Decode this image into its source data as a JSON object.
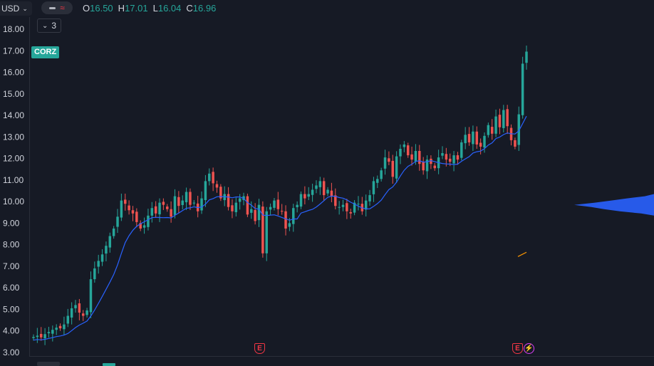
{
  "header": {
    "currency": "USD",
    "ohlc": {
      "open_key": "O",
      "open": "16.50",
      "high_key": "H",
      "high": "17.01",
      "low_key": "L",
      "low": "16.04",
      "close_key": "C",
      "close": "16.96"
    },
    "indicator_count": "3",
    "symbol": "CORZ"
  },
  "markers": {
    "earnings_label": "E",
    "dividend_icon": "lightning-icon"
  },
  "colors": {
    "background": "#161a25",
    "up": "#26a69a",
    "down": "#ef5350",
    "ma": "#2962ff",
    "volume_profile": "#2962ff",
    "earnings": "#f23645",
    "dividend": "#e040fb"
  },
  "chart_data": {
    "type": "candlestick",
    "ylim": [
      3.0,
      18.3
    ],
    "yticks": [
      "18.00",
      "17.00",
      "16.00",
      "15.00",
      "14.00",
      "13.00",
      "12.00",
      "11.00",
      "10.00",
      "9.00",
      "8.00",
      "7.00",
      "6.00",
      "5.00",
      "4.00",
      "3.00"
    ],
    "close": [
      3.72,
      3.78,
      3.7,
      3.85,
      3.95,
      4.05,
      4.15,
      4.12,
      4.3,
      4.7,
      5.05,
      5.2,
      4.85,
      4.7,
      4.95,
      6.4,
      6.9,
      7.25,
      7.55,
      7.95,
      8.4,
      8.75,
      9.3,
      10.05,
      9.9,
      9.6,
      9.45,
      9.05,
      8.75,
      8.9,
      9.35,
      9.7,
      9.45,
      9.95,
      9.85,
      9.65,
      9.3,
      10.25,
      9.8,
      10.05,
      10.45,
      9.85,
      9.95,
      9.55,
      10.15,
      10.95,
      11.3,
      10.85,
      10.65,
      10.15,
      10.35,
      9.75,
      9.55,
      9.95,
      10.15,
      10.25,
      9.4,
      9.65,
      9.1,
      9.85,
      7.6,
      9.55,
      9.75,
      10.05,
      9.65,
      9.55,
      8.75,
      9.0,
      9.7,
      9.85,
      10.35,
      10.15,
      10.35,
      10.55,
      10.75,
      10.95,
      10.3,
      10.55,
      10.25,
      9.8,
      9.75,
      9.85,
      9.55,
      9.45,
      9.95,
      9.9,
      9.55,
      10.05,
      10.3,
      10.95,
      11.05,
      11.45,
      12.05,
      11.85,
      11.15,
      12.1,
      12.45,
      12.65,
      12.15,
      11.95,
      12.35,
      11.75,
      11.45,
      11.95,
      11.75,
      11.55,
      12.05,
      12.25,
      11.95,
      11.85,
      12.15,
      11.95,
      12.75,
      13.1,
      12.75,
      13.25,
      12.65,
      12.55,
      13.05,
      13.55,
      13.15,
      13.95,
      13.45,
      14.25,
      13.5,
      12.85,
      12.55,
      14.05,
      16.4,
      16.96
    ]
  }
}
